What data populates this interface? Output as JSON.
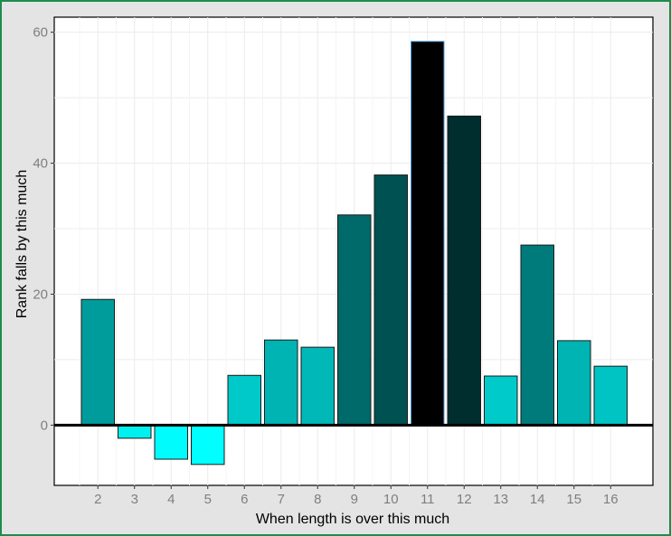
{
  "chart_data": {
    "type": "bar",
    "xlabel": "When length is over this much",
    "ylabel": "Rank falls by this much",
    "categories": [
      "2",
      "3",
      "4",
      "5",
      "6",
      "7",
      "8",
      "9",
      "10",
      "11",
      "12",
      "13",
      "14",
      "15",
      "16"
    ],
    "values": [
      19.2,
      -2.0,
      -5.2,
      -6.0,
      7.6,
      13.0,
      11.9,
      32.1,
      38.2,
      58.6,
      47.2,
      7.5,
      27.5,
      12.9,
      9.0
    ],
    "ylim": [
      -9.2,
      62.3
    ],
    "yticks": [
      0,
      20,
      40,
      60
    ],
    "grid": true,
    "zero_line": true,
    "colors": {
      "low": "#00ffff",
      "high": "#000000",
      "bar_outline": "#1a1a1a",
      "max_bar_outline": "#4f9fe0",
      "panel": "#ffffff",
      "grid": "#ececec",
      "background": "#e4e4e4",
      "frame": "#1e8c4e"
    }
  }
}
